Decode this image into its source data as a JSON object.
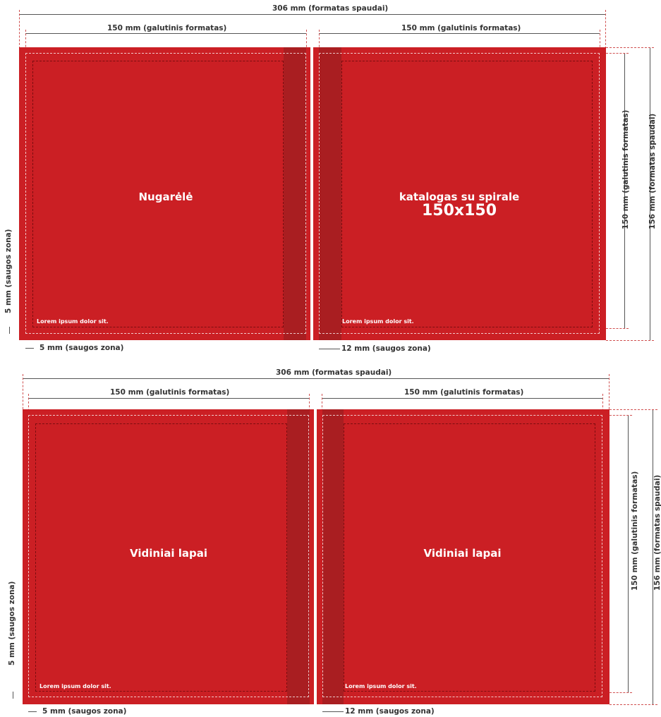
{
  "panel_top": {
    "print_width_label": "306 mm (formatas spaudai)",
    "left_final_label": "150 mm (galutinis formatas)",
    "right_final_label": "150 mm (galutinis formatas)",
    "right_final_height_label": "150 mm (galutinis formatas)",
    "right_print_height_label": "156 mm (formatas spaudai)",
    "left_safe_vertical_label": "5 mm (saugos zona)",
    "bottom_left_safe_label": "5 mm (saugos zona)",
    "bottom_right_safe_label": "12 mm (saugos zona)",
    "left_page_title": "Nugarėlė",
    "right_page_title_line1": "katalogas su spirale",
    "right_page_title_line2": "150x150",
    "left_page_small": "Lorem ipsum dolor sit.",
    "right_page_small": "Lorem ipsum dolor sit."
  },
  "panel_bottom": {
    "print_width_label": "306 mm (formatas spaudai)",
    "left_final_label": "150 mm (galutinis formatas)",
    "right_final_label": "150 mm (galutinis formatas)",
    "right_final_height_label": "150 mm (galutinis formatas)",
    "right_print_height_label": "156 mm (formatas spaudai)",
    "left_safe_vertical_label": "5 mm (saugos zona)",
    "bottom_left_safe_label": "5 mm (saugos zona)",
    "bottom_right_safe_label": "12 mm (saugos zona)",
    "left_page_title": "Vidiniai lapai",
    "right_page_title": "Vidiniai lapai",
    "left_page_small": "Lorem ipsum dolor sit.",
    "right_page_small": "Lorem ipsum dolor sit."
  },
  "colors": {
    "page_red": "#cb1f24",
    "spine_red": "#a61f22"
  }
}
